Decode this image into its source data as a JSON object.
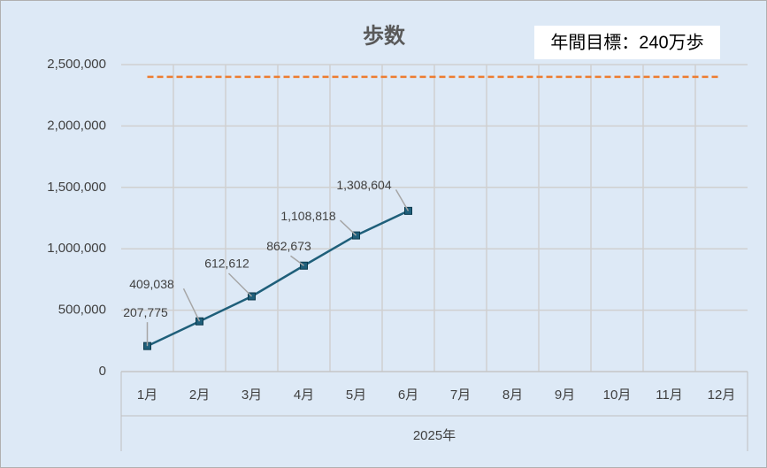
{
  "chart_data": {
    "type": "line",
    "title": "歩数",
    "annotation": "年間目標：240万歩",
    "categories": [
      "1月",
      "2月",
      "3月",
      "4月",
      "5月",
      "6月",
      "7月",
      "8月",
      "9月",
      "10月",
      "11月",
      "12月"
    ],
    "x_group_label": "2025年",
    "series": [
      {
        "color": "#1f5f7a",
        "values": [
          207775,
          409038,
          612612,
          862673,
          1108818,
          1308604,
          null,
          null,
          null,
          null,
          null,
          null
        ],
        "value_labels": [
          "207,775",
          "409,038",
          "612,612",
          "862,673",
          "1,108,818",
          "1,308,604",
          null,
          null,
          null,
          null,
          null,
          null
        ],
        "marker": "square"
      },
      {
        "color": "#ed7d31",
        "values": [
          2400000,
          2400000,
          2400000,
          2400000,
          2400000,
          2400000,
          2400000,
          2400000,
          2400000,
          2400000,
          2400000,
          2400000
        ],
        "dashed": true
      }
    ],
    "ylim": [
      0,
      2500000
    ],
    "yticks": [
      0,
      {
        "value": 500000,
        "label": "500,000"
      },
      {
        "value": 1000000,
        "label": "1,000,000"
      },
      {
        "value": 1500000,
        "label": "1,500,000"
      },
      {
        "value": 2000000,
        "label": "2,000,000"
      },
      {
        "value": 2500000,
        "label": "2,500,000"
      }
    ],
    "grid": true
  }
}
